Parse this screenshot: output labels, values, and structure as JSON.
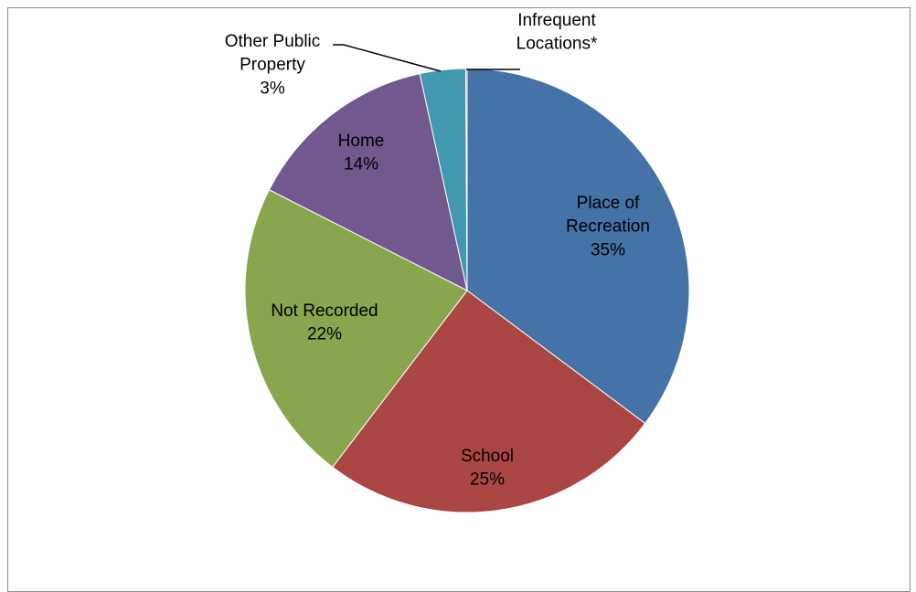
{
  "chart_data": {
    "type": "pie",
    "title": "",
    "slices": [
      {
        "label": "Place of\nRecreation",
        "pct_label": "35%",
        "value": 35,
        "color": "#4572a7"
      },
      {
        "label": "School",
        "pct_label": "25%",
        "value": 25,
        "color": "#aa4643"
      },
      {
        "label": "Not Recorded",
        "pct_label": "22%",
        "value": 22,
        "color": "#89a54e"
      },
      {
        "label": "Home",
        "pct_label": "14%",
        "value": 14,
        "color": "#71588f"
      },
      {
        "label": "Other Public\nProperty",
        "pct_label": "3%",
        "value": 3.3,
        "color": "#4198af"
      },
      {
        "label": "Infrequent\nLocations*",
        "pct_label": "",
        "value": 0.1,
        "color": "#db843d"
      }
    ],
    "legend": "none",
    "start_angle": "12 o'clock, clockwise"
  }
}
